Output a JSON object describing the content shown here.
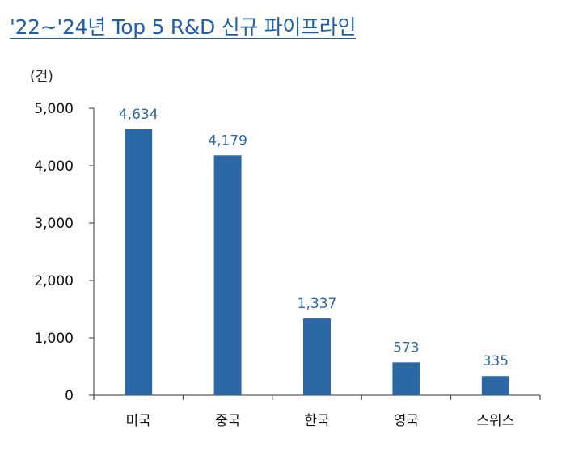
{
  "title": "'22~'24년 Top 5 R&D 신규 파이프라인",
  "unit_label": "(건)",
  "colors": {
    "title": "#1f5fa8",
    "bar": "#2c67a6",
    "data_label": "#2c67a6",
    "axis": "#333333"
  },
  "chart_data": {
    "type": "bar",
    "title": "'22~'24년 Top 5 R&D 신규 파이프라인",
    "ylabel": "(건)",
    "xlabel": "",
    "categories": [
      "미국",
      "중국",
      "한국",
      "영국",
      "스위스"
    ],
    "values": [
      4634,
      4179,
      1337,
      573,
      335
    ],
    "value_labels": [
      "4,634",
      "4,179",
      "1,337",
      "573",
      "335"
    ],
    "ylim": [
      0,
      5000
    ],
    "yticks": [
      0,
      1000,
      2000,
      3000,
      4000,
      5000
    ],
    "ytick_labels": [
      "0",
      "1,000",
      "2,000",
      "3,000",
      "4,000",
      "5,000"
    ],
    "grid": false,
    "legend": "none"
  }
}
